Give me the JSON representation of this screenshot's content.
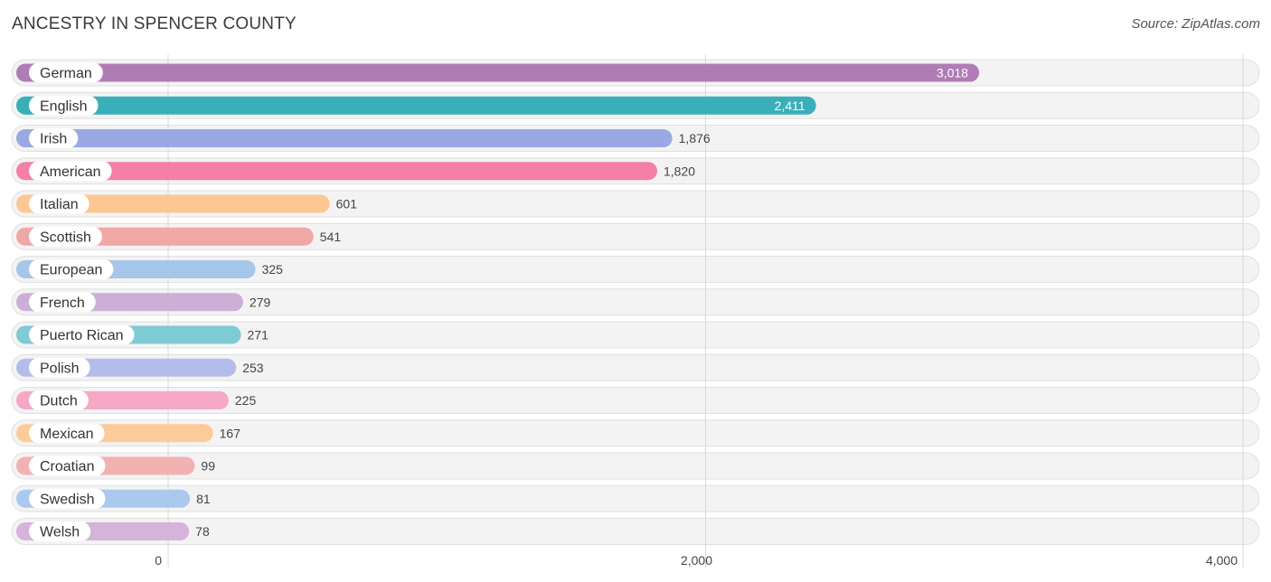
{
  "chart_data": {
    "type": "bar",
    "orientation": "horizontal",
    "title": "ANCESTRY IN SPENCER COUNTY",
    "source": "Source: ZipAtlas.com",
    "categories": [
      "German",
      "English",
      "Irish",
      "American",
      "Italian",
      "Scottish",
      "European",
      "French",
      "Puerto Rican",
      "Polish",
      "Dutch",
      "Mexican",
      "Croatian",
      "Swedish",
      "Welsh"
    ],
    "values": [
      3018,
      2411,
      1876,
      1820,
      601,
      541,
      325,
      279,
      271,
      253,
      225,
      167,
      99,
      81,
      78
    ],
    "value_labels": [
      "3,018",
      "2,411",
      "1,876",
      "1,820",
      "601",
      "541",
      "325",
      "279",
      "271",
      "253",
      "225",
      "167",
      "99",
      "81",
      "78"
    ],
    "colors": [
      "#b07cb5",
      "#3aafba",
      "#9aa8e3",
      "#f57fa6",
      "#fcc792",
      "#f0a8a6",
      "#a6c6ea",
      "#cdaed6",
      "#7ecad5",
      "#b4bde9",
      "#f6a8c6",
      "#fccb9a",
      "#f2b2b1",
      "#abc9ee",
      "#d4b4d8"
    ],
    "xlim": [
      0,
      4000
    ],
    "xticks": [
      0,
      2000,
      4000
    ],
    "xtick_labels": [
      "0",
      "2,000",
      "4,000"
    ],
    "grid": true
  }
}
